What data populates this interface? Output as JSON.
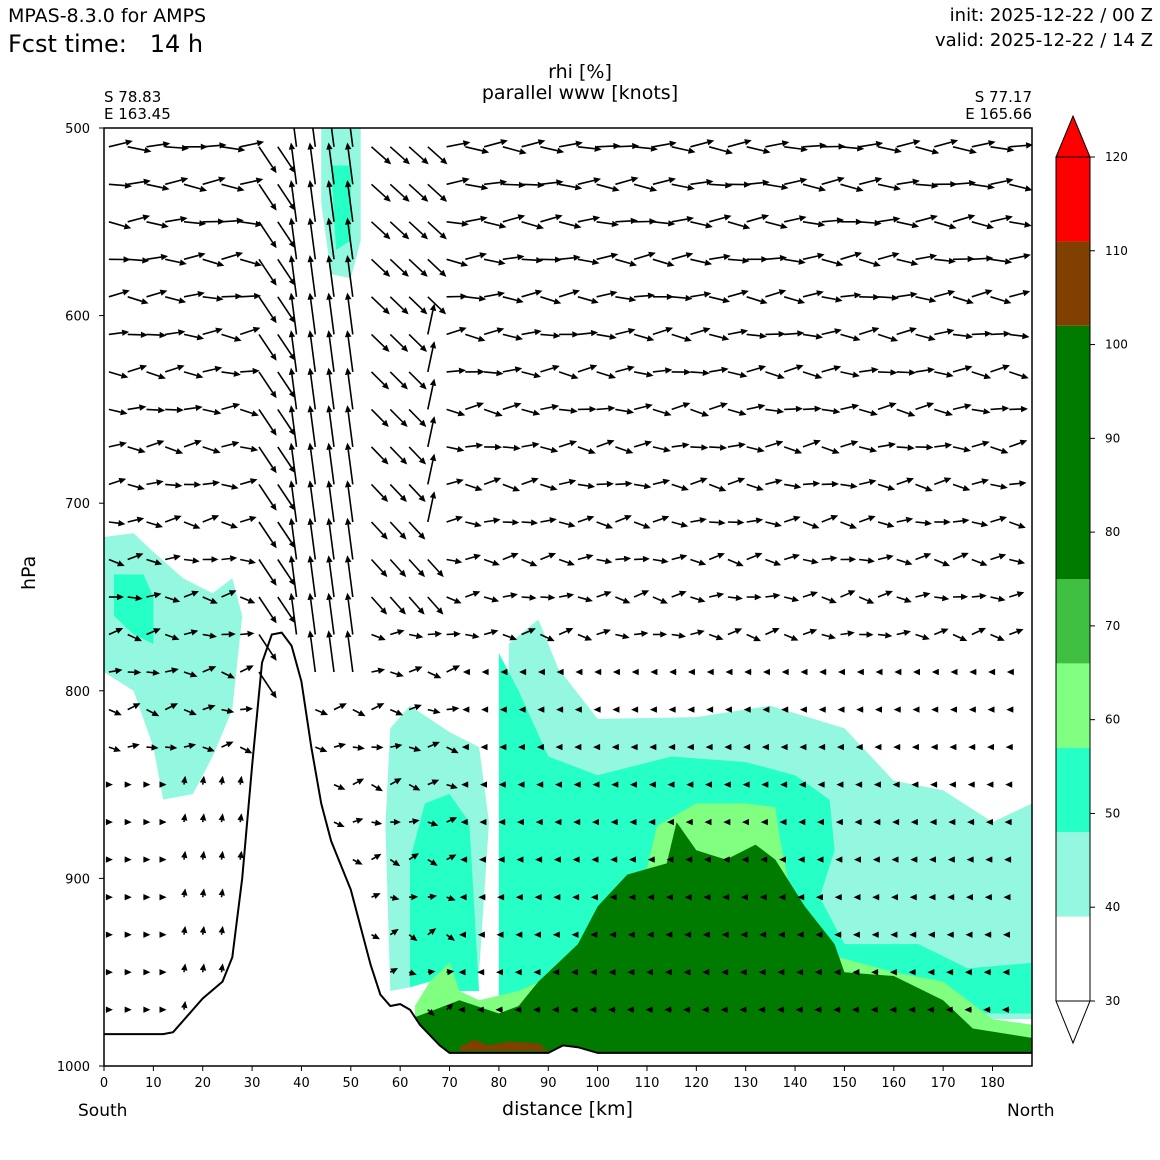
{
  "header": {
    "model": "MPAS-8.3.0 for AMPS",
    "fcst_label": "Fcst time:",
    "fcst_value": "14 h",
    "init": "init: 2025-12-22 / 00 Z",
    "valid": "valid: 2025-12-22 / 14 Z"
  },
  "chart_data": {
    "type": "heatmap",
    "title": "rhi [%]",
    "subtitle": "parallel www [knots]",
    "xlabel": "distance [km]",
    "ylabel": "hPa",
    "xlim": [
      0,
      188
    ],
    "ylim": [
      1000,
      500
    ],
    "x_ticks": [
      0,
      10,
      20,
      30,
      40,
      50,
      60,
      70,
      80,
      90,
      100,
      110,
      120,
      130,
      140,
      150,
      160,
      170,
      180
    ],
    "y_ticks": [
      500,
      600,
      700,
      800,
      900,
      1000
    ],
    "start_point": {
      "lat": "S 78.83",
      "lon": "E 163.45"
    },
    "end_point": {
      "lat": "S 77.17",
      "lon": "E 165.66"
    },
    "left_label": "South",
    "right_label": "North",
    "colorbar": {
      "levels": [
        30,
        40,
        50,
        60,
        70,
        80,
        90,
        100,
        110,
        120
      ],
      "bands": [
        {
          "from": 30,
          "to": 39,
          "color": "#ffffff"
        },
        {
          "from": 39,
          "to": 48,
          "color": "#93f8df"
        },
        {
          "from": 48,
          "to": 57,
          "color": "#26ffc6"
        },
        {
          "from": 57,
          "to": 66,
          "color": "#80ff80"
        },
        {
          "from": 66,
          "to": 75,
          "color": "#40c040"
        },
        {
          "from": 75,
          "to": 102,
          "color": "#007b00"
        },
        {
          "from": 102,
          "to": 111,
          "color": "#7f4000"
        },
        {
          "from": 111,
          "to": 120,
          "color": "#ff0000"
        }
      ]
    },
    "terrain_surface_hpa": [
      [
        0,
        983
      ],
      [
        12,
        983
      ],
      [
        14,
        982
      ],
      [
        20,
        964
      ],
      [
        24,
        955
      ],
      [
        26,
        942
      ],
      [
        28,
        900
      ],
      [
        30,
        840
      ],
      [
        32,
        785
      ],
      [
        34,
        770
      ],
      [
        36,
        769
      ],
      [
        38,
        776
      ],
      [
        40,
        795
      ],
      [
        42,
        830
      ],
      [
        44,
        860
      ],
      [
        46,
        880
      ],
      [
        48,
        893
      ],
      [
        50,
        906
      ],
      [
        52,
        926
      ],
      [
        54,
        946
      ],
      [
        56,
        962
      ],
      [
        58,
        968
      ],
      [
        60,
        967
      ],
      [
        62,
        970
      ],
      [
        64,
        978
      ],
      [
        68,
        989
      ],
      [
        70,
        993
      ],
      [
        84,
        993
      ],
      [
        90,
        993
      ],
      [
        93,
        989
      ],
      [
        96,
        990
      ],
      [
        100,
        993
      ],
      [
        188,
        993
      ]
    ],
    "rh_regions": [
      {
        "level": 40,
        "points": [
          [
            0,
            718
          ],
          [
            6,
            716
          ],
          [
            10,
            726
          ],
          [
            16,
            740
          ],
          [
            22,
            748
          ],
          [
            26,
            740
          ],
          [
            28,
            760
          ],
          [
            26,
            810
          ],
          [
            22,
            835
          ],
          [
            18,
            855
          ],
          [
            12,
            858
          ],
          [
            10,
            830
          ],
          [
            6,
            800
          ],
          [
            0,
            790
          ]
        ]
      },
      {
        "level": 50,
        "points": [
          [
            2,
            738
          ],
          [
            8,
            738
          ],
          [
            10,
            750
          ],
          [
            10,
            775
          ],
          [
            6,
            770
          ],
          [
            2,
            760
          ]
        ]
      },
      {
        "level": 40,
        "points": [
          [
            57,
            872
          ],
          [
            58,
            820
          ],
          [
            62,
            808
          ],
          [
            66,
            815
          ],
          [
            70,
            822
          ],
          [
            76,
            830
          ],
          [
            78,
            870
          ],
          [
            76,
            950
          ],
          [
            74,
            960
          ],
          [
            72,
            940
          ],
          [
            70,
            925
          ],
          [
            66,
            930
          ],
          [
            62,
            958
          ],
          [
            58,
            960
          ]
        ]
      },
      {
        "level": 40,
        "points": [
          [
            82,
            775
          ],
          [
            88,
            762
          ],
          [
            92,
            788
          ],
          [
            100,
            815
          ],
          [
            120,
            814
          ],
          [
            135,
            808
          ],
          [
            150,
            820
          ],
          [
            160,
            848
          ],
          [
            170,
            853
          ],
          [
            180,
            870
          ],
          [
            188,
            860
          ],
          [
            188,
            975
          ],
          [
            82,
            975
          ]
        ]
      },
      {
        "level": 50,
        "points": [
          [
            62,
            890
          ],
          [
            65,
            860
          ],
          [
            70,
            855
          ],
          [
            74,
            870
          ],
          [
            76,
            960
          ],
          [
            72,
            960
          ],
          [
            66,
            955
          ],
          [
            62,
            958
          ]
        ]
      },
      {
        "level": 50,
        "points": [
          [
            80,
            960
          ],
          [
            80,
            780
          ],
          [
            84,
            800
          ],
          [
            90,
            835
          ],
          [
            100,
            845
          ],
          [
            115,
            835
          ],
          [
            130,
            838
          ],
          [
            140,
            845
          ],
          [
            147,
            858
          ],
          [
            148,
            885
          ],
          [
            145,
            910
          ],
          [
            150,
            935
          ],
          [
            165,
            935
          ],
          [
            175,
            948
          ],
          [
            188,
            945
          ],
          [
            188,
            972
          ],
          [
            80,
            972
          ]
        ]
      },
      {
        "level": 60,
        "points": [
          [
            63,
            968
          ],
          [
            66,
            955
          ],
          [
            70,
            945
          ],
          [
            72,
            960
          ],
          [
            76,
            965
          ],
          [
            84,
            960
          ],
          [
            90,
            953
          ],
          [
            96,
            940
          ],
          [
            104,
            925
          ],
          [
            110,
            895
          ],
          [
            112,
            872
          ],
          [
            120,
            860
          ],
          [
            130,
            860
          ],
          [
            136,
            862
          ],
          [
            137,
            880
          ],
          [
            140,
            920
          ],
          [
            146,
            940
          ],
          [
            160,
            950
          ],
          [
            170,
            955
          ],
          [
            180,
            975
          ],
          [
            188,
            978
          ],
          [
            188,
            993
          ],
          [
            63,
            993
          ]
        ]
      },
      {
        "level": 80,
        "points": [
          [
            62,
            975
          ],
          [
            67,
            970
          ],
          [
            72,
            965
          ],
          [
            80,
            972
          ],
          [
            84,
            968
          ],
          [
            88,
            955
          ],
          [
            96,
            935
          ],
          [
            100,
            915
          ],
          [
            106,
            898
          ],
          [
            114,
            892
          ],
          [
            116,
            870
          ],
          [
            120,
            885
          ],
          [
            126,
            890
          ],
          [
            132,
            882
          ],
          [
            136,
            890
          ],
          [
            142,
            915
          ],
          [
            148,
            935
          ],
          [
            150,
            950
          ],
          [
            160,
            952
          ],
          [
            170,
            965
          ],
          [
            176,
            980
          ],
          [
            188,
            985
          ],
          [
            188,
            993
          ],
          [
            62,
            993
          ]
        ]
      },
      {
        "level": 100,
        "points": [
          [
            112,
            905
          ],
          [
            118,
            900
          ],
          [
            130,
            902
          ],
          [
            132,
            915
          ],
          [
            132,
            932
          ],
          [
            124,
            935
          ],
          [
            112,
            937
          ]
        ]
      },
      {
        "level": 100,
        "points": [
          [
            104,
            918
          ],
          [
            106,
            910
          ],
          [
            108,
            925
          ],
          [
            106,
            945
          ],
          [
            104,
            940
          ]
        ]
      },
      {
        "level": 110,
        "points": [
          [
            72,
            990
          ],
          [
            75,
            986
          ],
          [
            78,
            989
          ],
          [
            82,
            987
          ],
          [
            88,
            988
          ],
          [
            90,
            992
          ],
          [
            72,
            992
          ]
        ]
      },
      {
        "level": 40,
        "points": [
          [
            44,
            500
          ],
          [
            52,
            500
          ],
          [
            52,
            560
          ],
          [
            50,
            580
          ],
          [
            46,
            578
          ],
          [
            44,
            540
          ]
        ]
      },
      {
        "level": 50,
        "points": [
          [
            46,
            520
          ],
          [
            50,
            520
          ],
          [
            50,
            560
          ],
          [
            47,
            565
          ]
        ]
      }
    ],
    "wind_levels_hpa": [
      510,
      530,
      550,
      570,
      590,
      610,
      630,
      650,
      670,
      690,
      710,
      730,
      750,
      770,
      790,
      810,
      830,
      850,
      870,
      890,
      910,
      930,
      950,
      970,
      990
    ],
    "wind_note": "vectors sampled every ~3.8 km; strong upward/southward vectors near 38-60 km over the ridge"
  }
}
